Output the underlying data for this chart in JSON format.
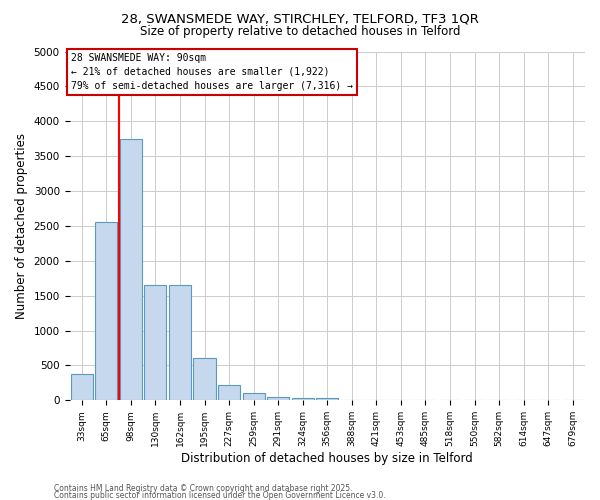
{
  "title1": "28, SWANSMEDE WAY, STIRCHLEY, TELFORD, TF3 1QR",
  "title2": "Size of property relative to detached houses in Telford",
  "xlabel": "Distribution of detached houses by size in Telford",
  "ylabel": "Number of detached properties",
  "categories": [
    "33sqm",
    "65sqm",
    "98sqm",
    "130sqm",
    "162sqm",
    "195sqm",
    "227sqm",
    "259sqm",
    "291sqm",
    "324sqm",
    "356sqm",
    "388sqm",
    "421sqm",
    "453sqm",
    "485sqm",
    "518sqm",
    "550sqm",
    "582sqm",
    "614sqm",
    "647sqm",
    "679sqm"
  ],
  "values": [
    375,
    2550,
    3750,
    1650,
    1650,
    600,
    220,
    110,
    50,
    40,
    30,
    0,
    0,
    0,
    0,
    0,
    0,
    0,
    0,
    0,
    0
  ],
  "bar_color": "#c5d8ed",
  "bar_edge_color": "#5a9abf",
  "red_line_x": 1.5,
  "annotation_line1": "28 SWANSMEDE WAY: 90sqm",
  "annotation_line2": "← 21% of detached houses are smaller (1,922)",
  "annotation_line3": "79% of semi-detached houses are larger (7,316) →",
  "annotation_box_color": "#ffffff",
  "annotation_box_edge_color": "#cc0000",
  "ylim": [
    0,
    5000
  ],
  "yticks": [
    0,
    500,
    1000,
    1500,
    2000,
    2500,
    3000,
    3500,
    4000,
    4500,
    5000
  ],
  "footer1": "Contains HM Land Registry data © Crown copyright and database right 2025.",
  "footer2": "Contains public sector information licensed under the Open Government Licence v3.0.",
  "bg_color": "#ffffff",
  "grid_color": "#cccccc",
  "fig_width": 6.0,
  "fig_height": 5.0,
  "dpi": 100
}
